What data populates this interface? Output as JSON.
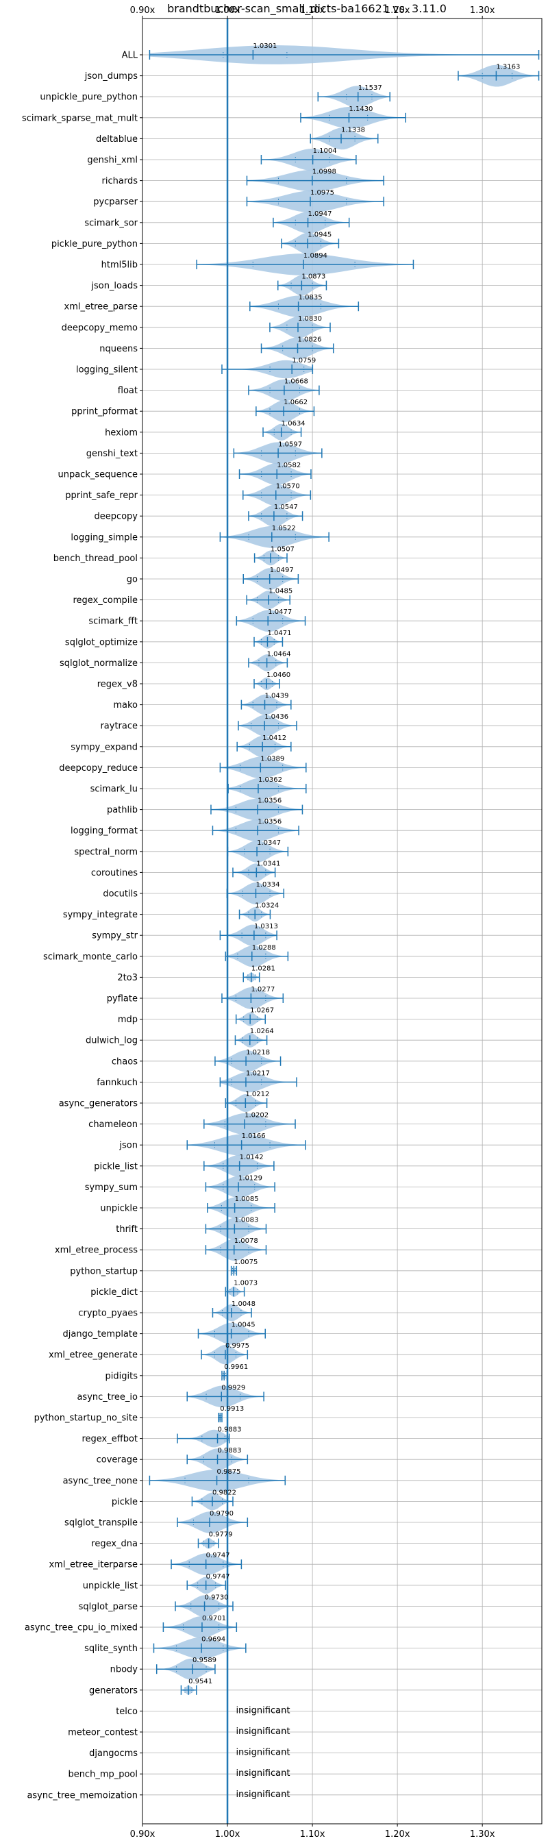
{
  "chart_data": {
    "type": "violin",
    "title": "brandtbucher-scan_small_dicts-ba16621 vs. 3.11.0",
    "xlabel": "",
    "ylabel": "",
    "xlim": [
      0.9,
      1.37
    ],
    "xticks": [
      0.9,
      1.0,
      1.1,
      1.2,
      1.3
    ],
    "xtick_labels": [
      "0.90x",
      "1.00x",
      "1.10x",
      "1.20x",
      "1.30x"
    ],
    "grid": true,
    "reference_line": 1.0,
    "color": "#1f77b4",
    "violin_fill": "#a8c8e4",
    "insignificant_label": "insignificant",
    "benchmarks": [
      {
        "name": "ALL",
        "value": 1.0301,
        "label": "1.0301",
        "min": 0.9084,
        "max": 1.3664,
        "q1": 0.995,
        "q3": 1.07
      },
      {
        "name": "json_dumps",
        "value": 1.3163,
        "label": "1.3163",
        "min": 1.2716,
        "max": 1.3664,
        "q1": 1.3,
        "q3": 1.335
      },
      {
        "name": "unpickle_pure_python",
        "value": 1.1537,
        "label": "1.1537",
        "min": 1.1066,
        "max": 1.1912,
        "q1": 1.14,
        "q3": 1.17
      },
      {
        "name": "scimark_sparse_mat_mult",
        "value": 1.143,
        "label": "1.1430",
        "min": 1.0862,
        "max": 1.2097,
        "q1": 1.12,
        "q3": 1.165
      },
      {
        "name": "deltablue",
        "value": 1.1338,
        "label": "1.1338",
        "min": 1.0977,
        "max": 1.1771,
        "q1": 1.12,
        "q3": 1.15
      },
      {
        "name": "genshi_xml",
        "value": 1.1004,
        "label": "1.1004",
        "min": 1.0398,
        "max": 1.1514,
        "q1": 1.08,
        "q3": 1.12
      },
      {
        "name": "richards",
        "value": 1.0998,
        "label": "1.0998",
        "min": 1.0229,
        "max": 1.1839,
        "q1": 1.06,
        "q3": 1.14
      },
      {
        "name": "pycparser",
        "value": 1.0975,
        "label": "1.0975",
        "min": 1.0229,
        "max": 1.1839,
        "q1": 1.06,
        "q3": 1.14
      },
      {
        "name": "scimark_sor",
        "value": 1.0947,
        "label": "1.0947",
        "min": 1.0539,
        "max": 1.1432,
        "q1": 1.08,
        "q3": 1.115
      },
      {
        "name": "pickle_pure_python",
        "value": 1.0945,
        "label": "1.0945",
        "min": 1.0637,
        "max": 1.1309,
        "q1": 1.08,
        "q3": 1.11
      },
      {
        "name": "html5lib",
        "value": 1.0894,
        "label": "1.0894",
        "min": 0.9638,
        "max": 1.2188,
        "q1": 1.03,
        "q3": 1.15
      },
      {
        "name": "json_loads",
        "value": 1.0873,
        "label": "1.0873",
        "min": 1.0594,
        "max": 1.1164,
        "q1": 1.075,
        "q3": 1.1
      },
      {
        "name": "xml_etree_parse",
        "value": 1.0835,
        "label": "1.0835",
        "min": 1.0264,
        "max": 1.1542,
        "q1": 1.06,
        "q3": 1.11
      },
      {
        "name": "deepcopy_memo",
        "value": 1.083,
        "label": "1.0830",
        "min": 1.0499,
        "max": 1.1209,
        "q1": 1.07,
        "q3": 1.1
      },
      {
        "name": "nqueens",
        "value": 1.0826,
        "label": "1.0826",
        "min": 1.0399,
        "max": 1.1247,
        "q1": 1.065,
        "q3": 1.1
      },
      {
        "name": "logging_silent",
        "value": 1.0759,
        "label": "1.0759",
        "min": 0.9935,
        "max": 1.1002,
        "q1": 1.05,
        "q3": 1.09
      },
      {
        "name": "float",
        "value": 1.0668,
        "label": "1.0668",
        "min": 1.0249,
        "max": 1.1079,
        "q1": 1.05,
        "q3": 1.085
      },
      {
        "name": "pprint_pformat",
        "value": 1.0662,
        "label": "1.0662",
        "min": 1.0337,
        "max": 1.1019,
        "q1": 1.05,
        "q3": 1.085
      },
      {
        "name": "hexiom",
        "value": 1.0634,
        "label": "1.0634",
        "min": 1.0419,
        "max": 1.0867,
        "q1": 1.055,
        "q3": 1.075
      },
      {
        "name": "genshi_text",
        "value": 1.0597,
        "label": "1.0597",
        "min": 1.0075,
        "max": 1.1111,
        "q1": 1.04,
        "q3": 1.08
      },
      {
        "name": "unpack_sequence",
        "value": 1.0582,
        "label": "1.0582",
        "min": 1.0141,
        "max": 1.0983,
        "q1": 1.04,
        "q3": 1.075
      },
      {
        "name": "pprint_safe_repr",
        "value": 1.057,
        "label": "1.0570",
        "min": 1.0183,
        "max": 1.0978,
        "q1": 1.04,
        "q3": 1.075
      },
      {
        "name": "deepcopy",
        "value": 1.0547,
        "label": "1.0547",
        "min": 1.0249,
        "max": 1.0883,
        "q1": 1.04,
        "q3": 1.07
      },
      {
        "name": "logging_simple",
        "value": 1.0522,
        "label": "1.0522",
        "min": 0.9914,
        "max": 1.1194,
        "q1": 1.025,
        "q3": 1.08
      },
      {
        "name": "bench_thread_pool",
        "value": 1.0507,
        "label": "1.0507",
        "min": 1.0319,
        "max": 1.0701,
        "q1": 1.043,
        "q3": 1.06
      },
      {
        "name": "go",
        "value": 1.0497,
        "label": "1.0497",
        "min": 1.0187,
        "max": 1.0833,
        "q1": 1.035,
        "q3": 1.065
      },
      {
        "name": "regex_compile",
        "value": 1.0485,
        "label": "1.0485",
        "min": 1.0227,
        "max": 1.0735,
        "q1": 1.035,
        "q3": 1.06
      },
      {
        "name": "scimark_fft",
        "value": 1.0477,
        "label": "1.0477",
        "min": 1.0107,
        "max": 1.0915,
        "q1": 1.03,
        "q3": 1.065
      },
      {
        "name": "sqlglot_optimize",
        "value": 1.0471,
        "label": "1.0471",
        "min": 1.0314,
        "max": 1.0648,
        "q1": 1.04,
        "q3": 1.055
      },
      {
        "name": "sqlglot_normalize",
        "value": 1.0464,
        "label": "1.0464",
        "min": 1.0249,
        "max": 1.0704,
        "q1": 1.037,
        "q3": 1.057
      },
      {
        "name": "regex_v8",
        "value": 1.046,
        "label": "1.0460",
        "min": 1.0314,
        "max": 1.0613,
        "q1": 1.04,
        "q3": 1.053
      },
      {
        "name": "mako",
        "value": 1.0439,
        "label": "1.0439",
        "min": 1.0164,
        "max": 1.0748,
        "q1": 1.03,
        "q3": 1.058
      },
      {
        "name": "raytrace",
        "value": 1.0436,
        "label": "1.0436",
        "min": 1.0128,
        "max": 1.0814,
        "q1": 1.028,
        "q3": 1.06
      },
      {
        "name": "sympy_expand",
        "value": 1.0412,
        "label": "1.0412",
        "min": 1.0114,
        "max": 1.0748,
        "q1": 1.026,
        "q3": 1.056
      },
      {
        "name": "deepcopy_reduce",
        "value": 1.0389,
        "label": "1.0389",
        "min": 0.9914,
        "max": 1.0925,
        "q1": 1.015,
        "q3": 1.065
      },
      {
        "name": "scimark_lu",
        "value": 1.0362,
        "label": "1.0362",
        "min": 1.0009,
        "max": 1.0925,
        "q1": 1.015,
        "q3": 1.06
      },
      {
        "name": "pathlib",
        "value": 1.0356,
        "label": "1.0356",
        "min": 0.9806,
        "max": 1.0882,
        "q1": 1.01,
        "q3": 1.06
      },
      {
        "name": "logging_format",
        "value": 1.0356,
        "label": "1.0356",
        "min": 0.9826,
        "max": 1.0839,
        "q1": 1.01,
        "q3": 1.06
      },
      {
        "name": "spectral_norm",
        "value": 1.0347,
        "label": "1.0347",
        "min": 1.0003,
        "max": 1.0712,
        "q1": 1.02,
        "q3": 1.05
      },
      {
        "name": "coroutines",
        "value": 1.0341,
        "label": "1.0341",
        "min": 1.0064,
        "max": 1.0561,
        "q1": 1.025,
        "q3": 1.045
      },
      {
        "name": "docutils",
        "value": 1.0334,
        "label": "1.0334",
        "min": 0.9995,
        "max": 1.0663,
        "q1": 1.018,
        "q3": 1.05
      },
      {
        "name": "sympy_integrate",
        "value": 1.0324,
        "label": "1.0324",
        "min": 1.0141,
        "max": 1.0503,
        "q1": 1.025,
        "q3": 1.04
      },
      {
        "name": "sympy_str",
        "value": 1.0313,
        "label": "1.0313",
        "min": 0.9914,
        "max": 1.0581,
        "q1": 1.017,
        "q3": 1.045
      },
      {
        "name": "scimark_monte_carlo",
        "value": 1.0288,
        "label": "1.0288",
        "min": 0.9978,
        "max": 1.0712,
        "q1": 1.012,
        "q3": 1.045
      },
      {
        "name": "2to3",
        "value": 1.0281,
        "label": "1.0281",
        "min": 1.0187,
        "max": 1.0376,
        "q1": 1.024,
        "q3": 1.033
      },
      {
        "name": "pyflate",
        "value": 1.0277,
        "label": "1.0277",
        "min": 0.9935,
        "max": 1.0655,
        "q1": 1.01,
        "q3": 1.045
      },
      {
        "name": "mdp",
        "value": 1.0267,
        "label": "1.0267",
        "min": 1.0102,
        "max": 1.0445,
        "q1": 1.019,
        "q3": 1.035
      },
      {
        "name": "dulwich_log",
        "value": 1.0264,
        "label": "1.0264",
        "min": 1.0092,
        "max": 1.0464,
        "q1": 1.018,
        "q3": 1.035
      },
      {
        "name": "chaos",
        "value": 1.0218,
        "label": "1.0218",
        "min": 0.9854,
        "max": 1.0625,
        "q1": 1.005,
        "q3": 1.04
      },
      {
        "name": "fannkuch",
        "value": 1.0217,
        "label": "1.0217",
        "min": 0.9914,
        "max": 1.0814,
        "q1": 1.005,
        "q3": 1.04
      },
      {
        "name": "async_generators",
        "value": 1.0212,
        "label": "1.0212",
        "min": 0.9978,
        "max": 1.0464,
        "q1": 1.01,
        "q3": 1.033
      },
      {
        "name": "chameleon",
        "value": 1.0202,
        "label": "1.0202",
        "min": 0.9724,
        "max": 1.0798,
        "q1": 0.997,
        "q3": 1.045
      },
      {
        "name": "json",
        "value": 1.0166,
        "label": "1.0166",
        "min": 0.9526,
        "max": 1.0917,
        "q1": 0.985,
        "q3": 1.05
      },
      {
        "name": "pickle_list",
        "value": 1.0142,
        "label": "1.0142",
        "min": 0.9724,
        "max": 1.0547,
        "q1": 0.995,
        "q3": 1.035
      },
      {
        "name": "sympy_sum",
        "value": 1.0129,
        "label": "1.0129",
        "min": 0.9745,
        "max": 1.0557,
        "q1": 0.995,
        "q3": 1.032
      },
      {
        "name": "unpickle",
        "value": 1.0085,
        "label": "1.0085",
        "min": 0.9765,
        "max": 1.0557,
        "q1": 0.993,
        "q3": 1.028
      },
      {
        "name": "thrift",
        "value": 1.0083,
        "label": "1.0083",
        "min": 0.9745,
        "max": 1.0455,
        "q1": 0.992,
        "q3": 1.025
      },
      {
        "name": "xml_etree_process",
        "value": 1.0078,
        "label": "1.0078",
        "min": 0.9745,
        "max": 1.0455,
        "q1": 0.992,
        "q3": 1.025
      },
      {
        "name": "python_startup",
        "value": 1.0075,
        "label": "1.0075",
        "min": 1.0045,
        "max": 1.0107,
        "q1": 1.006,
        "q3": 1.009
      },
      {
        "name": "pickle_dict",
        "value": 1.0073,
        "label": "1.0073",
        "min": 0.9978,
        "max": 1.0198,
        "q1": 1.003,
        "q3": 1.012
      },
      {
        "name": "crypto_pyaes",
        "value": 1.0048,
        "label": "1.0048",
        "min": 0.9826,
        "max": 1.0282,
        "q1": 0.994,
        "q3": 1.016
      },
      {
        "name": "django_template",
        "value": 1.0045,
        "label": "1.0045",
        "min": 0.9657,
        "max": 1.0445,
        "q1": 0.985,
        "q3": 1.025
      },
      {
        "name": "xml_etree_generate",
        "value": 0.9975,
        "label": "0.9975",
        "min": 0.9694,
        "max": 1.0236,
        "q1": 0.985,
        "q3": 1.01
      },
      {
        "name": "pidigits",
        "value": 0.9961,
        "label": "0.9961",
        "min": 0.9935,
        "max": 0.9995,
        "q1": 0.995,
        "q3": 0.998
      },
      {
        "name": "async_tree_io",
        "value": 0.9929,
        "label": "0.9929",
        "min": 0.9526,
        "max": 1.0428,
        "q1": 0.975,
        "q3": 1.015
      },
      {
        "name": "python_startup_no_site",
        "value": 0.9913,
        "label": "0.9913",
        "min": 0.9894,
        "max": 0.9935,
        "q1": 0.9905,
        "q3": 0.9925
      },
      {
        "name": "regex_effbot",
        "value": 0.9883,
        "label": "0.9883",
        "min": 0.9411,
        "max": 1.0021,
        "q1": 0.97,
        "q3": 0.997
      },
      {
        "name": "coverage",
        "value": 0.9883,
        "label": "0.9883",
        "min": 0.9526,
        "max": 1.0236,
        "q1": 0.972,
        "q3": 1.005
      },
      {
        "name": "async_tree_none",
        "value": 0.9875,
        "label": "0.9875",
        "min": 0.9084,
        "max": 1.0679,
        "q1": 0.95,
        "q3": 1.025
      },
      {
        "name": "pickle",
        "value": 0.9822,
        "label": "0.9822",
        "min": 0.9584,
        "max": 1.0064,
        "q1": 0.97,
        "q3": 0.994
      },
      {
        "name": "sqlglot_transpile",
        "value": 0.979,
        "label": "0.9790",
        "min": 0.9411,
        "max": 1.0236,
        "q1": 0.96,
        "q3": 1.0
      },
      {
        "name": "regex_dna",
        "value": 0.9779,
        "label": "0.9779",
        "min": 0.9657,
        "max": 0.9894,
        "q1": 0.972,
        "q3": 0.984
      },
      {
        "name": "xml_etree_iterparse",
        "value": 0.9747,
        "label": "0.9747",
        "min": 0.9339,
        "max": 1.0164,
        "q1": 0.955,
        "q3": 0.995
      },
      {
        "name": "unpickle_list",
        "value": 0.9747,
        "label": "0.9747",
        "min": 0.9526,
        "max": 0.9978,
        "q1": 0.965,
        "q3": 0.986
      },
      {
        "name": "sqlglot_parse",
        "value": 0.973,
        "label": "0.9730",
        "min": 0.9387,
        "max": 1.0064,
        "q1": 0.957,
        "q3": 0.99
      },
      {
        "name": "async_tree_cpu_io_mixed",
        "value": 0.9701,
        "label": "0.9701",
        "min": 0.9245,
        "max": 1.0107,
        "q1": 0.948,
        "q3": 0.99
      },
      {
        "name": "sqlite_synth",
        "value": 0.9694,
        "label": "0.9694",
        "min": 0.9133,
        "max": 1.0216,
        "q1": 0.94,
        "q3": 0.995
      },
      {
        "name": "nbody",
        "value": 0.9589,
        "label": "0.9589",
        "min": 0.9167,
        "max": 0.9854,
        "q1": 0.94,
        "q3": 0.975
      },
      {
        "name": "generators",
        "value": 0.9541,
        "label": "0.9541",
        "min": 0.9455,
        "max": 0.9635,
        "q1": 0.95,
        "q3": 0.958
      },
      {
        "name": "telco",
        "value": null,
        "label": "",
        "significant": false
      },
      {
        "name": "meteor_contest",
        "value": null,
        "label": "",
        "significant": false
      },
      {
        "name": "djangocms",
        "value": null,
        "label": "",
        "significant": false
      },
      {
        "name": "bench_mp_pool",
        "value": null,
        "label": "",
        "significant": false
      },
      {
        "name": "async_tree_memoization",
        "value": null,
        "label": "",
        "significant": false
      }
    ]
  }
}
